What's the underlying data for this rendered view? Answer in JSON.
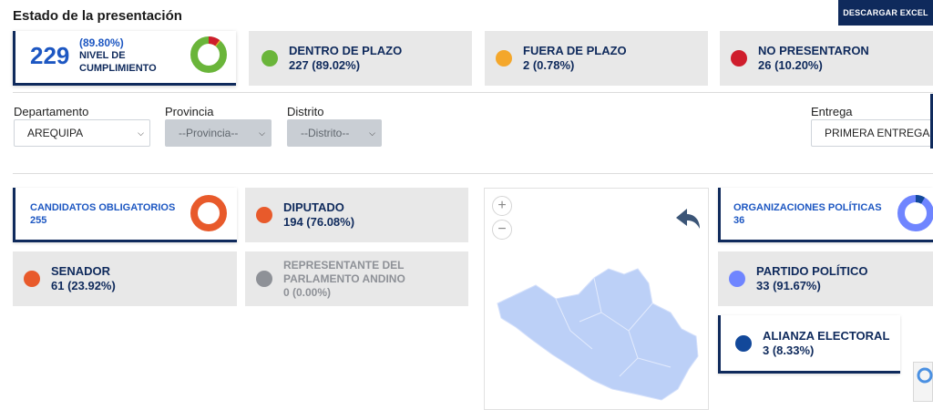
{
  "header": {
    "title": "Estado de la presentación",
    "download_label": "DESCARGAR EXCEL"
  },
  "summary": {
    "count": "229",
    "percent": "(89.80%)",
    "label_line1": "NIVEL DE",
    "label_line2": "CUMPLIMIENTO",
    "compliance_fraction": 0.898
  },
  "status_cards": [
    {
      "title": "DENTRO DE PLAZO",
      "value": "227 (89.02%)",
      "color": "#6ab53a"
    },
    {
      "title": "FUERA DE PLAZO",
      "value": "2 (0.78%)",
      "color": "#f4a72b"
    },
    {
      "title": "NO PRESENTARON",
      "value": "26 (10.20%)",
      "color": "#cf1d2c"
    }
  ],
  "filters": {
    "departamento": {
      "label": "Departamento",
      "value": "AREQUIPA"
    },
    "provincia": {
      "label": "Provincia",
      "value": "--Provincia--"
    },
    "distrito": {
      "label": "Distrito",
      "value": "--Distrito--"
    },
    "entrega": {
      "label": "Entrega",
      "value": "PRIMERA ENTREGA"
    }
  },
  "candidates": {
    "header_title": "CANDIDATOS OBLIGATORIOS",
    "header_value": "255",
    "items": [
      {
        "title": "DIPUTADO",
        "value": "194 (76.08%)",
        "color": "#e85a2b"
      },
      {
        "title": "SENADOR",
        "value": "61 (23.92%)",
        "color": "#e85a2b"
      },
      {
        "title_line1": "REPRESENTANTE DEL",
        "title_line2": "PARLAMENTO ANDINO",
        "value": "0 (0.00%)",
        "color": "#8e9197"
      }
    ]
  },
  "organizations": {
    "header_title": "ORGANIZACIONES POLÍTICAS",
    "header_value": "36",
    "items": [
      {
        "title": "PARTIDO POLÍTICO",
        "value": "33 (91.67%)",
        "color": "#6f85ff"
      },
      {
        "title": "ALIANZA ELECTORAL",
        "value": "3 (8.33%)",
        "color": "#12489a"
      }
    ]
  },
  "map": {
    "zoom_in": "+",
    "zoom_out": "−"
  },
  "colors": {
    "navy": "#0f2a5c",
    "accent_blue": "#1d57c2",
    "map_fill": "#bcd0f7"
  }
}
